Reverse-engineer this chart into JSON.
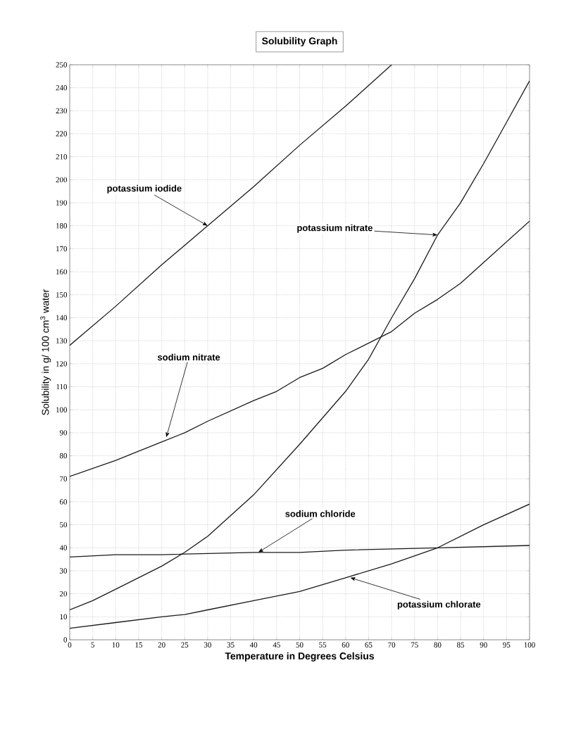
{
  "chart_data": {
    "type": "line",
    "title": "Solubility Graph",
    "xlabel": "Temperature in Degrees Celsius",
    "ylabel": "Solubility in g/ 100 cm$^{3}$ water",
    "series": [
      {
        "color": "#1a1a1a",
        "x": [
          0,
          10,
          20,
          30,
          40,
          50,
          60,
          70
        ],
        "values": [
          128,
          145,
          163,
          180,
          197,
          215,
          232,
          250
        ]
      },
      {
        "color": "#1a1a1a",
        "x": [
          0,
          5,
          10,
          20,
          25,
          30,
          40,
          50,
          60,
          65,
          70,
          75,
          80,
          85,
          90,
          95,
          100
        ],
        "values": [
          13,
          17,
          22,
          32,
          38,
          45,
          63,
          85,
          108,
          122,
          140,
          157,
          176,
          190,
          207,
          225,
          243
        ]
      },
      {
        "color": "#1a1a1a",
        "x": [
          0,
          10,
          20,
          25,
          30,
          40,
          45,
          50,
          55,
          60,
          70,
          75,
          80,
          85,
          90,
          100
        ],
        "values": [
          71,
          78,
          86,
          90,
          95,
          104,
          108,
          114,
          118,
          124,
          134,
          142,
          148,
          155,
          164,
          182
        ]
      },
      {
        "color": "#1a1a1a",
        "x": [
          0,
          10,
          20,
          40,
          50,
          60,
          80,
          100
        ],
        "values": [
          36,
          37,
          37,
          38,
          38,
          39,
          40,
          41
        ]
      },
      {
        "color": "#1a1a1a",
        "x": [
          0,
          10,
          20,
          25,
          30,
          40,
          50,
          60,
          70,
          80,
          90,
          100
        ],
        "values": [
          5,
          7.5,
          10,
          11,
          13,
          17,
          21,
          27,
          33,
          40,
          50,
          59
        ]
      }
    ],
    "xlim": [
      0,
      100
    ],
    "ylim": [
      0,
      250
    ],
    "xticks": [
      0,
      5,
      10,
      15,
      20,
      25,
      30,
      35,
      40,
      45,
      50,
      55,
      60,
      65,
      70,
      75,
      80,
      85,
      90,
      95,
      100
    ],
    "yticks": [
      0,
      10,
      20,
      30,
      40,
      50,
      60,
      70,
      80,
      90,
      100,
      110,
      120,
      130,
      140,
      150,
      160,
      170,
      180,
      190,
      200,
      210,
      220,
      230,
      240,
      250
    ],
    "grid": true,
    "line_style": "solid",
    "annotations": [
      {
        "text": "potassium iodide",
        "x": 30,
        "y": 180
      },
      {
        "text": "potassium nitrate",
        "x": 80,
        "y": 176
      },
      {
        "text": "sodium nitrate",
        "x": 21,
        "y": 88
      },
      {
        "text": "sodium chloride",
        "x": 41,
        "y": 38
      },
      {
        "text": "potassium chlorate",
        "x": 61,
        "y": 27
      }
    ]
  }
}
